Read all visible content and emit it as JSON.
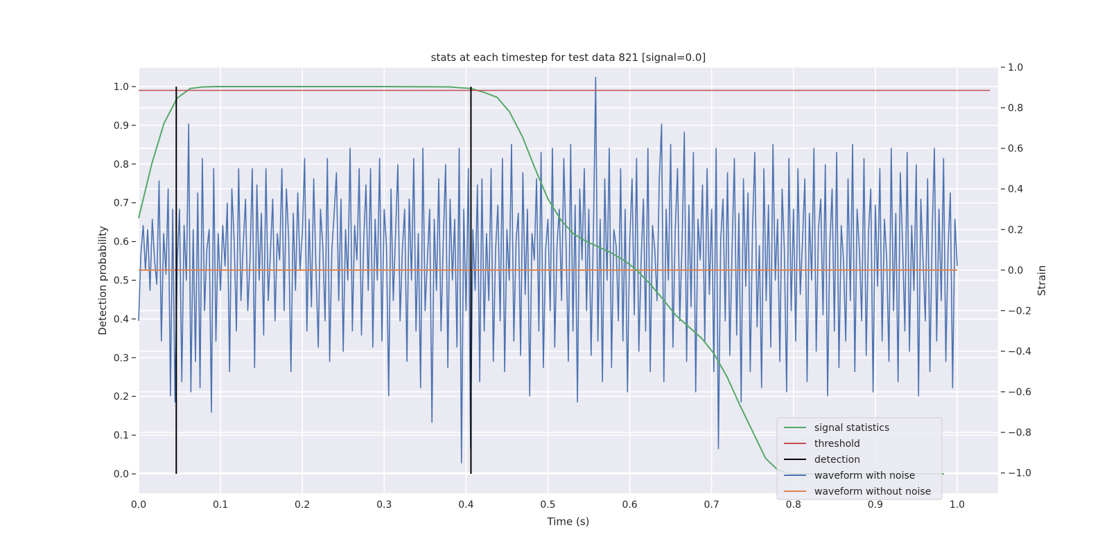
{
  "chart_data": {
    "type": "line",
    "title": "stats at each timestep for test data 821 [signal=0.0]",
    "xlabel": "Time (s)",
    "ylabel_left": "Detection probability",
    "ylabel_right": "Strain",
    "xlim": [
      0.0,
      1.05
    ],
    "ylim_left": [
      -0.05,
      1.05
    ],
    "ylim_right": [
      -1.1,
      1.0
    ],
    "x_ticks": [
      "0.0",
      "0.1",
      "0.2",
      "0.3",
      "0.4",
      "0.5",
      "0.6",
      "0.7",
      "0.8",
      "0.9",
      "1.0"
    ],
    "y_ticks_left": [
      "0.0",
      "0.1",
      "0.2",
      "0.3",
      "0.4",
      "0.5",
      "0.6",
      "0.7",
      "0.8",
      "0.9",
      "1.0"
    ],
    "y_ticks_right": [
      "−1.0",
      "−0.8",
      "−0.6",
      "−0.4",
      "−0.2",
      "0.0",
      "0.2",
      "0.4",
      "0.6",
      "0.8",
      "1.0"
    ],
    "grid": true,
    "legend_position": "lower-right",
    "colors": {
      "signal_statistics": "#55a868",
      "threshold": "#c44e52",
      "detection": "#000000",
      "waveform_with_noise": "#4c72b0",
      "waveform_without_noise": "#dd8452",
      "plot_background": "#eaeaf2",
      "grid": "#ffffff"
    },
    "series": [
      {
        "name": "signal statistics",
        "axis": "left",
        "x": [
          0.0,
          0.016,
          0.031,
          0.047,
          0.063,
          0.078,
          0.094,
          0.2,
          0.3,
          0.38,
          0.406,
          0.422,
          0.438,
          0.453,
          0.469,
          0.484,
          0.5,
          0.516,
          0.531,
          0.547,
          0.563,
          0.578,
          0.594,
          0.609,
          0.625,
          0.641,
          0.656,
          0.672,
          0.688,
          0.703,
          0.719,
          0.734,
          0.75,
          0.766,
          0.781,
          0.797,
          0.813,
          0.828,
          0.844,
          0.859,
          0.875,
          0.89,
          0.906,
          0.922,
          0.938,
          0.953,
          0.969,
          0.984
        ],
        "values": [
          0.66,
          0.8,
          0.905,
          0.97,
          0.995,
          0.999,
          1.0,
          1.0,
          1.0,
          0.999,
          0.995,
          0.985,
          0.972,
          0.935,
          0.87,
          0.79,
          0.71,
          0.655,
          0.62,
          0.6,
          0.585,
          0.57,
          0.55,
          0.525,
          0.49,
          0.45,
          0.41,
          0.38,
          0.35,
          0.31,
          0.25,
          0.18,
          0.11,
          0.04,
          0.01,
          0.0,
          0.0,
          0.0,
          0.0,
          0.0,
          0.0,
          0.0,
          0.0,
          0.0,
          0.0,
          0.0,
          0.0,
          0.0
        ]
      },
      {
        "name": "threshold",
        "axis": "left",
        "x": [
          0.0,
          1.04
        ],
        "values": [
          0.99,
          0.99
        ]
      },
      {
        "name": "detection",
        "axis": "left",
        "segments": [
          {
            "x": 0.046,
            "from": 0.0,
            "to": 1.0
          },
          {
            "x": 0.406,
            "from": 0.0,
            "to": 1.0
          }
        ]
      },
      {
        "name": "waveform with noise",
        "axis": "right",
        "x_start": 0.0,
        "x_end": 1.0,
        "values": [
          -0.25,
          0.08,
          0.22,
          0.0,
          0.2,
          -0.1,
          0.25,
          0.05,
          -0.07,
          0.44,
          -0.35,
          0.18,
          -0.02,
          0.4,
          -0.62,
          0.3,
          -0.65,
          0.05,
          0.3,
          -0.55,
          0.22,
          -0.05,
          0.72,
          -0.6,
          0.2,
          -0.45,
          0.38,
          -0.58,
          0.55,
          -0.2,
          0.1,
          0.2,
          -0.7,
          0.5,
          -0.35,
          0.18,
          -0.1,
          0.22,
          0.02,
          0.33,
          -0.5,
          0.4,
          0.15,
          -0.3,
          0.5,
          -0.15,
          0.12,
          0.35,
          -0.2,
          0.05,
          0.5,
          -0.48,
          0.42,
          -0.05,
          0.28,
          -0.32,
          0.5,
          -0.15,
          0.1,
          0.35,
          -0.25,
          0.18,
          0.05,
          0.5,
          -0.2,
          0.4,
          0.15,
          -0.5,
          0.28,
          -0.1,
          0.38,
          0.0,
          0.18,
          0.55,
          -0.3,
          0.25,
          -0.18,
          0.45,
          0.0,
          -0.38,
          0.3,
          0.12,
          -0.25,
          0.55,
          -0.45,
          0.1,
          0.28,
          0.48,
          -0.15,
          0.35,
          -0.4,
          0.2,
          -0.05,
          0.6,
          -0.3,
          0.22,
          0.05,
          0.5,
          -0.32,
          0.15,
          0.42,
          -0.1,
          0.5,
          -0.38,
          0.25,
          -0.05,
          0.55,
          -0.35,
          0.3,
          0.12,
          -0.62,
          0.4,
          -0.15,
          0.18,
          0.52,
          -0.25,
          0.1,
          0.3,
          -0.45,
          0.35,
          -0.05,
          0.55,
          -0.3,
          0.18,
          -0.58,
          0.6,
          -0.2,
          0.05,
          0.3,
          -0.75,
          0.25,
          -0.1,
          0.45,
          -0.3,
          0.15,
          0.52,
          -0.48,
          0.35,
          -0.05,
          0.25,
          -0.38,
          0.6,
          -0.95,
          0.3,
          -0.2,
          0.5,
          -0.88,
          0.2,
          -0.1,
          0.42,
          -0.55,
          0.45,
          -0.3,
          0.18,
          -0.15,
          0.5,
          -0.45,
          0.1,
          0.32,
          -0.25,
          0.55,
          -0.5,
          0.2,
          -0.05,
          0.62,
          -0.35,
          0.15,
          0.28,
          -0.42,
          0.48,
          -0.12,
          0.3,
          -0.62,
          0.18,
          0.05,
          0.45,
          -0.3,
          0.58,
          -0.48,
          0.1,
          0.25,
          -0.2,
          0.6,
          -0.38,
          0.12,
          0.3,
          -0.15,
          0.55,
          0.12,
          -0.45,
          0.62,
          -0.3,
          0.32,
          -0.65,
          0.4,
          0.05,
          0.5,
          -0.2,
          0.3,
          -0.42,
          0.18,
          0.95,
          -0.35,
          0.25,
          -0.55,
          0.45,
          -0.05,
          0.6,
          -0.48,
          0.2,
          0.12,
          -0.25,
          0.5,
          -0.35,
          0.3,
          -0.6,
          0.15,
          0.45,
          -0.22,
          0.55,
          -0.4,
          0.05,
          0.35,
          -0.3,
          0.6,
          -0.5,
          0.22,
          0.1,
          -0.15,
          0.45,
          0.72,
          -0.55,
          0.3,
          -0.05,
          0.62,
          -0.38,
          0.2,
          0.5,
          -0.25,
          0.12,
          0.68,
          -0.45,
          0.32,
          -0.18,
          0.58,
          -0.6,
          0.25,
          0.05,
          0.42,
          -0.35,
          0.5,
          -0.12,
          0.3,
          -0.5,
          0.6,
          -0.88,
          0.15,
          0.35,
          -0.25,
          0.48,
          -0.42,
          0.1,
          0.55,
          -0.32,
          0.28,
          -0.65,
          0.45,
          -0.08,
          0.38,
          -0.5,
          0.2,
          0.58,
          -0.28,
          0.12,
          -0.58,
          0.5,
          -0.15,
          0.32,
          -0.38,
          0.62,
          -0.05,
          0.25,
          -0.45,
          0.4,
          0.1,
          -0.6,
          0.55,
          -0.2,
          0.3,
          -0.35,
          0.5,
          -0.12,
          0.15,
          0.45,
          -0.55,
          0.28,
          -0.05,
          0.6,
          -0.4,
          0.2,
          0.35,
          -0.22,
          0.52,
          -0.62,
          0.12,
          0.4,
          -0.3,
          0.58,
          -0.48,
          0.22,
          0.05,
          -0.35,
          0.45,
          -0.15,
          0.62,
          -0.5,
          0.3,
          0.1,
          -0.25,
          0.55,
          -0.42,
          0.18,
          0.4,
          -0.6,
          0.32,
          -0.08,
          0.5,
          -0.35,
          0.25,
          0.05,
          -0.45,
          0.6,
          -0.2,
          0.28,
          -0.55,
          0.48,
          0.12,
          -0.3,
          0.58,
          -0.4,
          0.22,
          -0.1,
          0.52,
          -0.62,
          0.35,
          0.05,
          -0.25,
          0.45,
          -0.5,
          0.18,
          0.6,
          -0.35,
          0.3,
          -0.15,
          0.55,
          -0.45,
          0.1,
          0.38,
          -0.58,
          0.25,
          0.02
        ]
      },
      {
        "name": "waveform without noise",
        "axis": "right",
        "x": [
          0.0,
          1.0
        ],
        "values": [
          0.0,
          0.0
        ]
      }
    ]
  }
}
